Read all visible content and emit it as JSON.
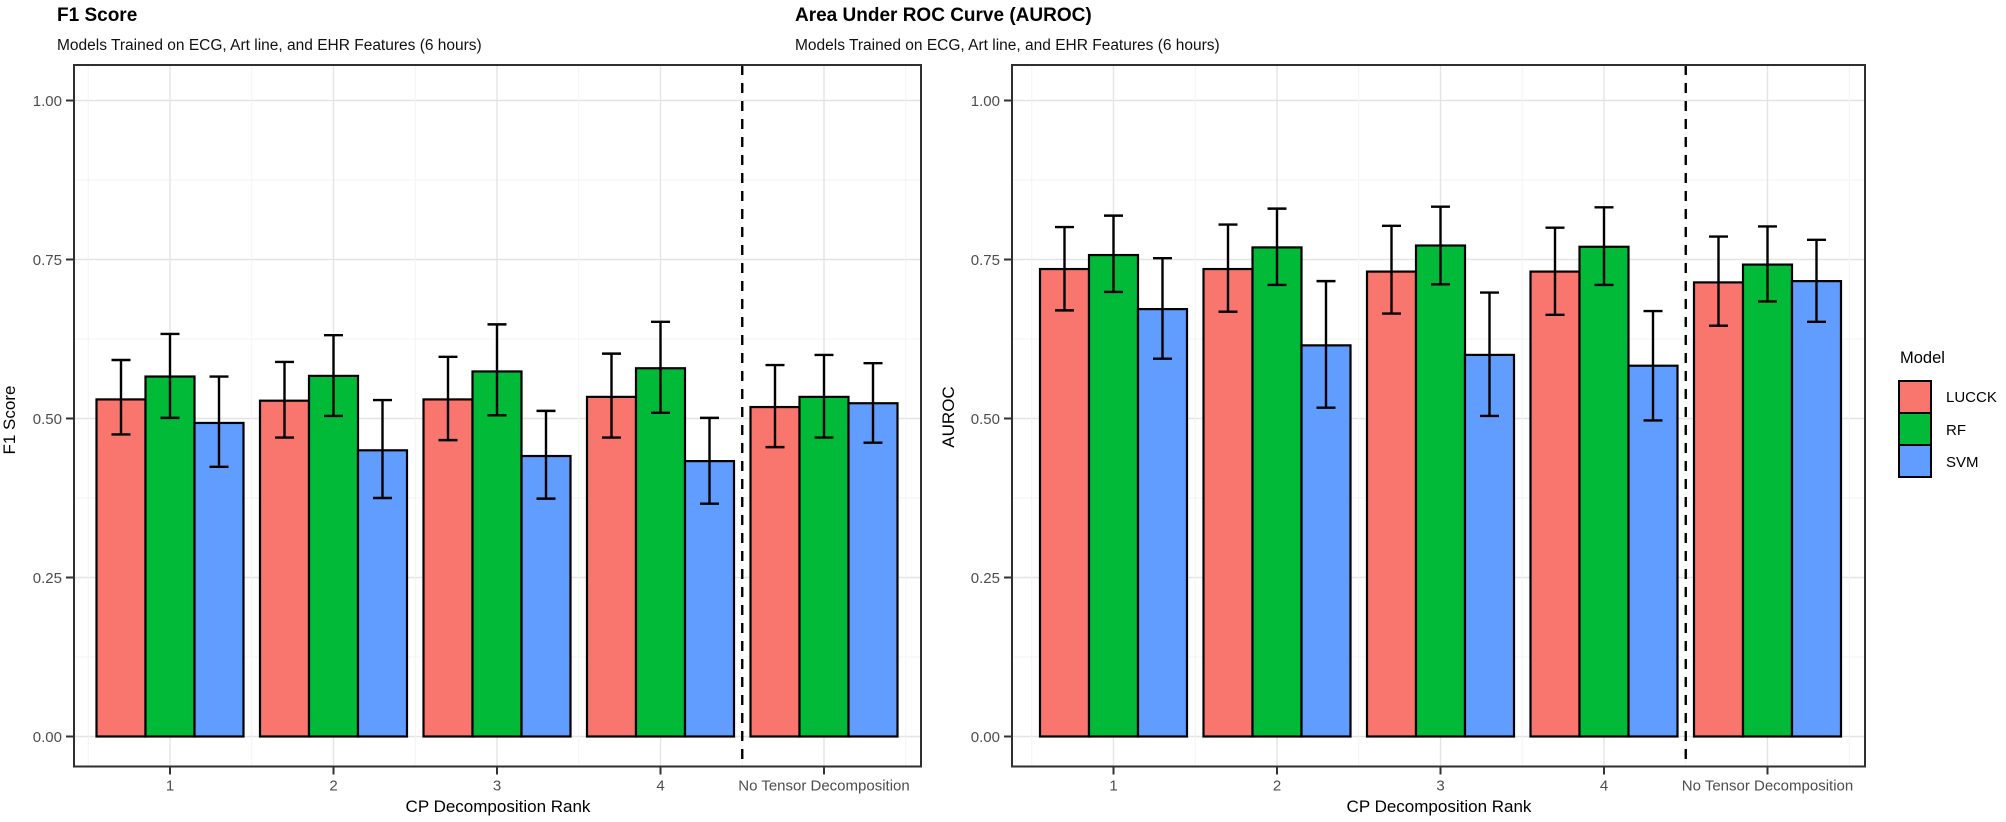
{
  "charts": [
    {
      "title": "F1 Score",
      "subtitle": "Models Trained on ECG, Art line, and EHR Features (6 hours)",
      "ylabel": "F1 Score",
      "xlabel": "CP Decomposition Rank"
    },
    {
      "title": "Area Under ROC Curve (AUROC)",
      "subtitle": "Models Trained on ECG, Art line, and EHR Features (6 hours)",
      "ylabel": "AUROC",
      "xlabel": "CP Decomposition Rank"
    }
  ],
  "legend": {
    "title": "Model",
    "items": [
      {
        "label": "LUCCK",
        "color": "#F8766D"
      },
      {
        "label": "RF",
        "color": "#00BA38"
      },
      {
        "label": "SVM",
        "color": "#619CFF"
      }
    ]
  },
  "chart_data": [
    {
      "type": "bar",
      "title": "F1 Score",
      "subtitle": "Models Trained on ECG, Art line, and EHR Features (6 hours)",
      "xlabel": "CP Decomposition Rank",
      "ylabel": "F1 Score",
      "categories": [
        "1",
        "2",
        "3",
        "4",
        "No Tensor Decomposition"
      ],
      "ylim": [
        0,
        1
      ],
      "yticks": [
        0,
        0.25,
        0.5,
        0.75,
        1.0
      ],
      "ytick_labels": [
        "0.00",
        "0.25",
        "0.50",
        "0.75",
        "1.00"
      ],
      "grid": true,
      "legend_position": "right",
      "separator_before_category": "No Tensor Decomposition",
      "series": [
        {
          "name": "LUCCK",
          "color": "#F8766D",
          "values": [
            0.53,
            0.528,
            0.53,
            0.534,
            0.518
          ],
          "errors_low": [
            0.475,
            0.47,
            0.466,
            0.47,
            0.455
          ],
          "errors_high": [
            0.592,
            0.589,
            0.597,
            0.602,
            0.584
          ]
        },
        {
          "name": "RF",
          "color": "#00BA38",
          "values": [
            0.566,
            0.567,
            0.574,
            0.579,
            0.534
          ],
          "errors_low": [
            0.501,
            0.504,
            0.505,
            0.509,
            0.47
          ],
          "errors_high": [
            0.633,
            0.631,
            0.648,
            0.652,
            0.6
          ]
        },
        {
          "name": "SVM",
          "color": "#619CFF",
          "values": [
            0.493,
            0.45,
            0.441,
            0.433,
            0.524
          ],
          "errors_low": [
            0.424,
            0.375,
            0.374,
            0.366,
            0.462
          ],
          "errors_high": [
            0.566,
            0.529,
            0.512,
            0.501,
            0.587
          ]
        }
      ]
    },
    {
      "type": "bar",
      "title": "Area Under ROC Curve (AUROC)",
      "subtitle": "Models Trained on ECG, Art line, and EHR Features (6 hours)",
      "xlabel": "CP Decomposition Rank",
      "ylabel": "AUROC",
      "categories": [
        "1",
        "2",
        "3",
        "4",
        "No Tensor Decomposition"
      ],
      "ylim": [
        0,
        1
      ],
      "yticks": [
        0,
        0.25,
        0.5,
        0.75,
        1.0
      ],
      "ytick_labels": [
        "0.00",
        "0.25",
        "0.50",
        "0.75",
        "1.00"
      ],
      "grid": true,
      "legend_position": "right",
      "separator_before_category": "No Tensor Decomposition",
      "series": [
        {
          "name": "LUCCK",
          "color": "#F8766D",
          "values": [
            0.735,
            0.735,
            0.731,
            0.731,
            0.714
          ],
          "errors_low": [
            0.67,
            0.668,
            0.665,
            0.663,
            0.646
          ],
          "errors_high": [
            0.801,
            0.805,
            0.803,
            0.8,
            0.786
          ]
        },
        {
          "name": "RF",
          "color": "#00BA38",
          "values": [
            0.757,
            0.769,
            0.772,
            0.77,
            0.742
          ],
          "errors_low": [
            0.699,
            0.71,
            0.711,
            0.71,
            0.684
          ],
          "errors_high": [
            0.819,
            0.83,
            0.833,
            0.832,
            0.802
          ]
        },
        {
          "name": "SVM",
          "color": "#619CFF",
          "values": [
            0.672,
            0.615,
            0.6,
            0.583,
            0.716
          ],
          "errors_low": [
            0.594,
            0.517,
            0.504,
            0.497,
            0.652
          ],
          "errors_high": [
            0.752,
            0.716,
            0.698,
            0.669,
            0.781
          ]
        }
      ]
    }
  ]
}
